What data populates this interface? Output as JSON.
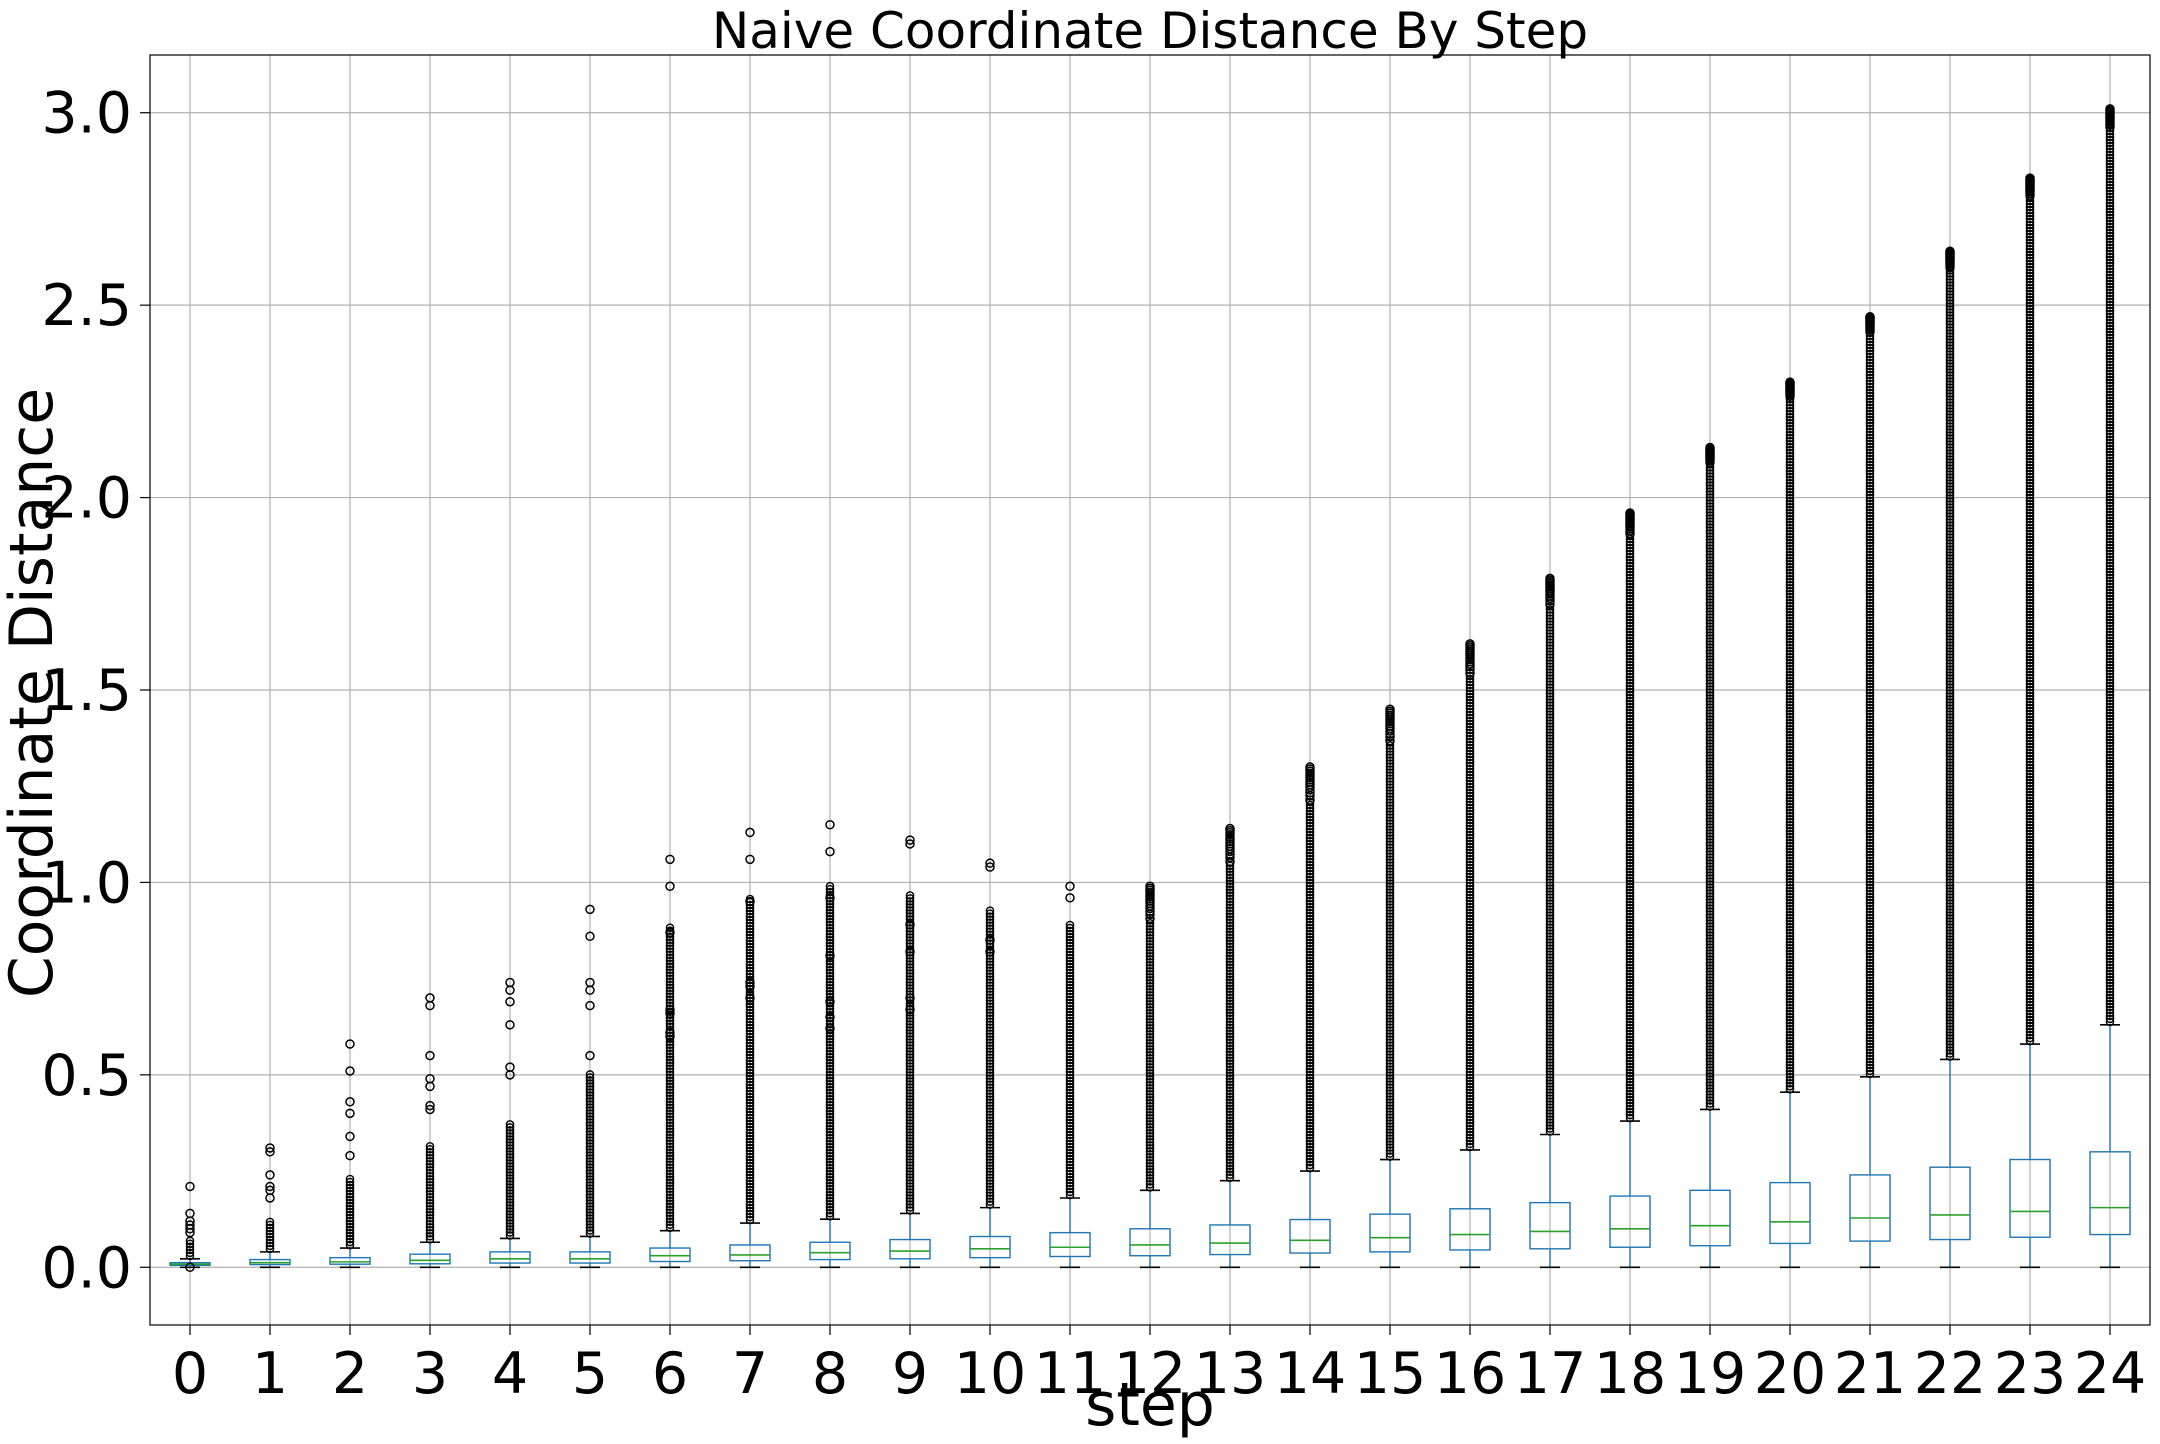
{
  "chart_data": {
    "type": "box",
    "title": "Naive Coordinate Distance By Step",
    "xlabel": "step",
    "ylabel": "Coordinate Distance",
    "ylim": [
      -0.15,
      3.15
    ],
    "yticks": [
      "0.0",
      "0.5",
      "1.0",
      "1.5",
      "2.0",
      "2.5",
      "3.0"
    ],
    "grid": true,
    "colors": {
      "box": "#1f77b4",
      "median": "#2ca02c",
      "flier": "#000000",
      "grid": "#b0b0b0"
    },
    "categories": [
      "0",
      "1",
      "2",
      "3",
      "4",
      "5",
      "6",
      "7",
      "8",
      "9",
      "10",
      "11",
      "12",
      "13",
      "14",
      "15",
      "16",
      "17",
      "18",
      "19",
      "20",
      "21",
      "22",
      "23",
      "24"
    ],
    "boxes": [
      {
        "step": "0",
        "whislo": 0.0,
        "q1": 0.005,
        "median": 0.008,
        "q3": 0.012,
        "whishi": 0.022,
        "flier_max": 0.21,
        "fliers": [
          0.21,
          0.14,
          0.12,
          0.11,
          0.1,
          0.09,
          0.0
        ]
      },
      {
        "step": "1",
        "whislo": 0.0,
        "q1": 0.007,
        "median": 0.012,
        "q3": 0.02,
        "whishi": 0.04,
        "flier_max": 0.31,
        "fliers": [
          0.31,
          0.3,
          0.24,
          0.21,
          0.2,
          0.18
        ]
      },
      {
        "step": "2",
        "whislo": 0.0,
        "q1": 0.008,
        "median": 0.014,
        "q3": 0.025,
        "whishi": 0.05,
        "flier_max": 0.58,
        "fliers": [
          0.58,
          0.51,
          0.43,
          0.4,
          0.34,
          0.29
        ]
      },
      {
        "step": "3",
        "whislo": 0.0,
        "q1": 0.009,
        "median": 0.018,
        "q3": 0.034,
        "whishi": 0.065,
        "flier_max": 0.7,
        "fliers": [
          0.7,
          0.68,
          0.55,
          0.49,
          0.47,
          0.42,
          0.41
        ]
      },
      {
        "step": "4",
        "whislo": 0.0,
        "q1": 0.011,
        "median": 0.022,
        "q3": 0.04,
        "whishi": 0.075,
        "flier_max": 0.74,
        "fliers": [
          0.74,
          0.72,
          0.69,
          0.63,
          0.52,
          0.5
        ]
      },
      {
        "step": "5",
        "whislo": 0.0,
        "q1": 0.011,
        "median": 0.022,
        "q3": 0.04,
        "whishi": 0.08,
        "flier_max": 0.93,
        "fliers": [
          0.93,
          0.86,
          0.74,
          0.72,
          0.68,
          0.55
        ]
      },
      {
        "step": "6",
        "whislo": 0.0,
        "q1": 0.015,
        "median": 0.03,
        "q3": 0.05,
        "whishi": 0.095,
        "flier_max": 1.06,
        "fliers": [
          1.06,
          0.99,
          0.87,
          0.67,
          0.66,
          0.61,
          0.6
        ]
      },
      {
        "step": "7",
        "whislo": 0.0,
        "q1": 0.017,
        "median": 0.032,
        "q3": 0.058,
        "whishi": 0.115,
        "flier_max": 1.13,
        "fliers": [
          1.13,
          1.06,
          0.95,
          0.74,
          0.73,
          0.7
        ]
      },
      {
        "step": "8",
        "whislo": 0.0,
        "q1": 0.02,
        "median": 0.038,
        "q3": 0.065,
        "whishi": 0.125,
        "flier_max": 1.15,
        "fliers": [
          1.15,
          1.08,
          0.96,
          0.81,
          0.69,
          0.65,
          0.62
        ]
      },
      {
        "step": "9",
        "whislo": 0.0,
        "q1": 0.022,
        "median": 0.042,
        "q3": 0.072,
        "whishi": 0.14,
        "flier_max": 1.11,
        "fliers": [
          1.11,
          1.1,
          0.89,
          0.82,
          0.7,
          0.67
        ]
      },
      {
        "step": "10",
        "whislo": 0.0,
        "q1": 0.025,
        "median": 0.048,
        "q3": 0.08,
        "whishi": 0.155,
        "flier_max": 1.05,
        "fliers": [
          1.05,
          1.04,
          0.85,
          0.82
        ]
      },
      {
        "step": "11",
        "whislo": 0.0,
        "q1": 0.028,
        "median": 0.052,
        "q3": 0.09,
        "whishi": 0.18,
        "flier_max": 0.99,
        "fliers": [
          0.99,
          0.96
        ]
      },
      {
        "step": "12",
        "whislo": 0.0,
        "q1": 0.03,
        "median": 0.058,
        "q3": 0.1,
        "whishi": 0.2,
        "flier_max": 0.99,
        "fliers": []
      },
      {
        "step": "13",
        "whislo": 0.0,
        "q1": 0.033,
        "median": 0.063,
        "q3": 0.11,
        "whishi": 0.225,
        "flier_max": 1.14,
        "fliers": []
      },
      {
        "step": "14",
        "whislo": 0.0,
        "q1": 0.037,
        "median": 0.07,
        "q3": 0.124,
        "whishi": 0.25,
        "flier_max": 1.3,
        "fliers": []
      },
      {
        "step": "15",
        "whislo": 0.0,
        "q1": 0.04,
        "median": 0.077,
        "q3": 0.138,
        "whishi": 0.28,
        "flier_max": 1.45,
        "fliers": []
      },
      {
        "step": "16",
        "whislo": 0.0,
        "q1": 0.045,
        "median": 0.085,
        "q3": 0.152,
        "whishi": 0.305,
        "flier_max": 1.62,
        "fliers": []
      },
      {
        "step": "17",
        "whislo": 0.0,
        "q1": 0.048,
        "median": 0.093,
        "q3": 0.168,
        "whishi": 0.345,
        "flier_max": 1.79,
        "fliers": []
      },
      {
        "step": "18",
        "whislo": 0.0,
        "q1": 0.052,
        "median": 0.1,
        "q3": 0.185,
        "whishi": 0.38,
        "flier_max": 1.96,
        "fliers": []
      },
      {
        "step": "19",
        "whislo": 0.0,
        "q1": 0.056,
        "median": 0.108,
        "q3": 0.2,
        "whishi": 0.41,
        "flier_max": 2.13,
        "fliers": []
      },
      {
        "step": "20",
        "whislo": 0.0,
        "q1": 0.062,
        "median": 0.118,
        "q3": 0.22,
        "whishi": 0.455,
        "flier_max": 2.3,
        "fliers": []
      },
      {
        "step": "21",
        "whislo": 0.0,
        "q1": 0.068,
        "median": 0.128,
        "q3": 0.24,
        "whishi": 0.495,
        "flier_max": 2.47,
        "fliers": []
      },
      {
        "step": "22",
        "whislo": 0.0,
        "q1": 0.072,
        "median": 0.136,
        "q3": 0.26,
        "whishi": 0.54,
        "flier_max": 2.64,
        "fliers": []
      },
      {
        "step": "23",
        "whislo": 0.0,
        "q1": 0.078,
        "median": 0.145,
        "q3": 0.28,
        "whishi": 0.58,
        "flier_max": 2.83,
        "fliers": []
      },
      {
        "step": "24",
        "whislo": 0.0,
        "q1": 0.085,
        "median": 0.155,
        "q3": 0.3,
        "whishi": 0.63,
        "flier_max": 3.01,
        "fliers": []
      }
    ]
  }
}
